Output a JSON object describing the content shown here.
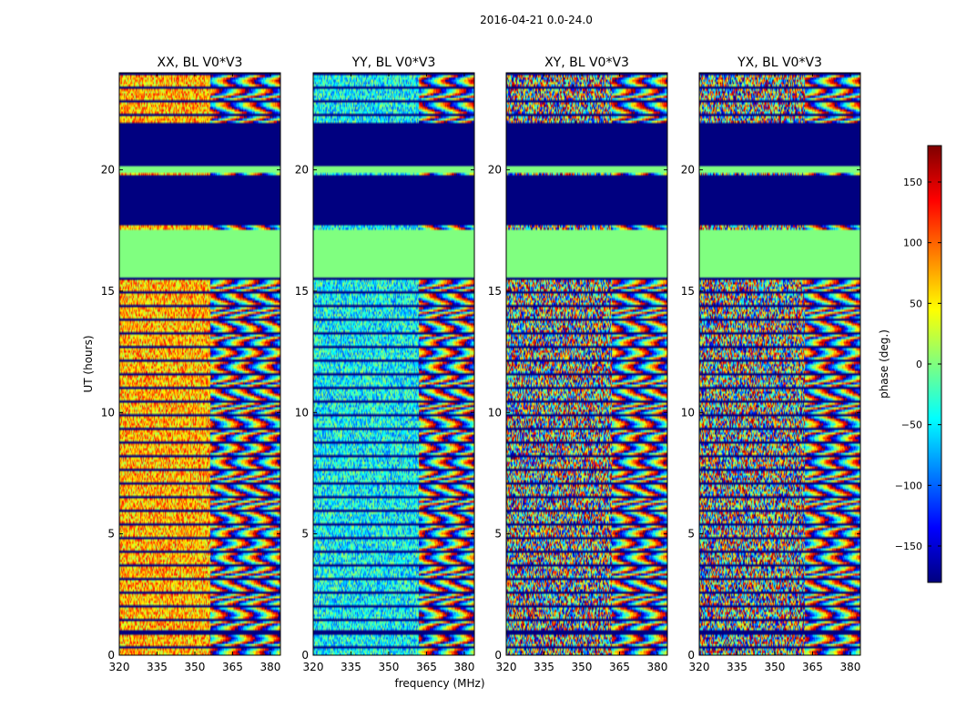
{
  "figure_title": "2016-04-21 0.0-24.0",
  "chart_data": {
    "type": "heatmap",
    "colormap": "jet",
    "shared_ylabel": "UT (hours)",
    "shared_xlabel": "frequency (MHz)",
    "xlim": [
      320,
      384
    ],
    "ylim": [
      0,
      24
    ],
    "x_ticks": [
      "320",
      "335",
      "350",
      "365",
      "380"
    ],
    "x_tick_values": [
      320,
      335,
      350,
      365,
      380
    ],
    "y_ticks": [
      "0",
      "5",
      "10",
      "15",
      "20"
    ],
    "y_tick_values": [
      0,
      5,
      10,
      15,
      20
    ],
    "colorbar": {
      "label": "phase (deg.)",
      "range": [
        -180,
        180
      ],
      "ticks": [
        "−150",
        "−100",
        "−50",
        "0",
        "50",
        "100",
        "150"
      ],
      "tick_values": [
        -150,
        -100,
        -50,
        0,
        50,
        100,
        150
      ]
    },
    "panels": [
      {
        "title": "XX, BL V0*V3",
        "mean_phase": 70,
        "structure_mhz": 356
      },
      {
        "title": "YY, BL V0*V3",
        "mean_phase": -45,
        "structure_mhz": 362
      },
      {
        "title": "XY, BL V0*V3",
        "mean_phase": 0,
        "structure_mhz": 362
      },
      {
        "title": "YX, BL V0*V3",
        "mean_phase": 0,
        "structure_mhz": 362
      }
    ],
    "flagged_ut_ranges": [
      [
        0.85,
        1.0
      ],
      [
        17.7,
        19.8
      ],
      [
        20.2,
        21.9
      ]
    ],
    "constant_ut_ranges": [
      [
        15.6,
        17.5
      ],
      [
        19.9,
        20.15
      ]
    ]
  }
}
